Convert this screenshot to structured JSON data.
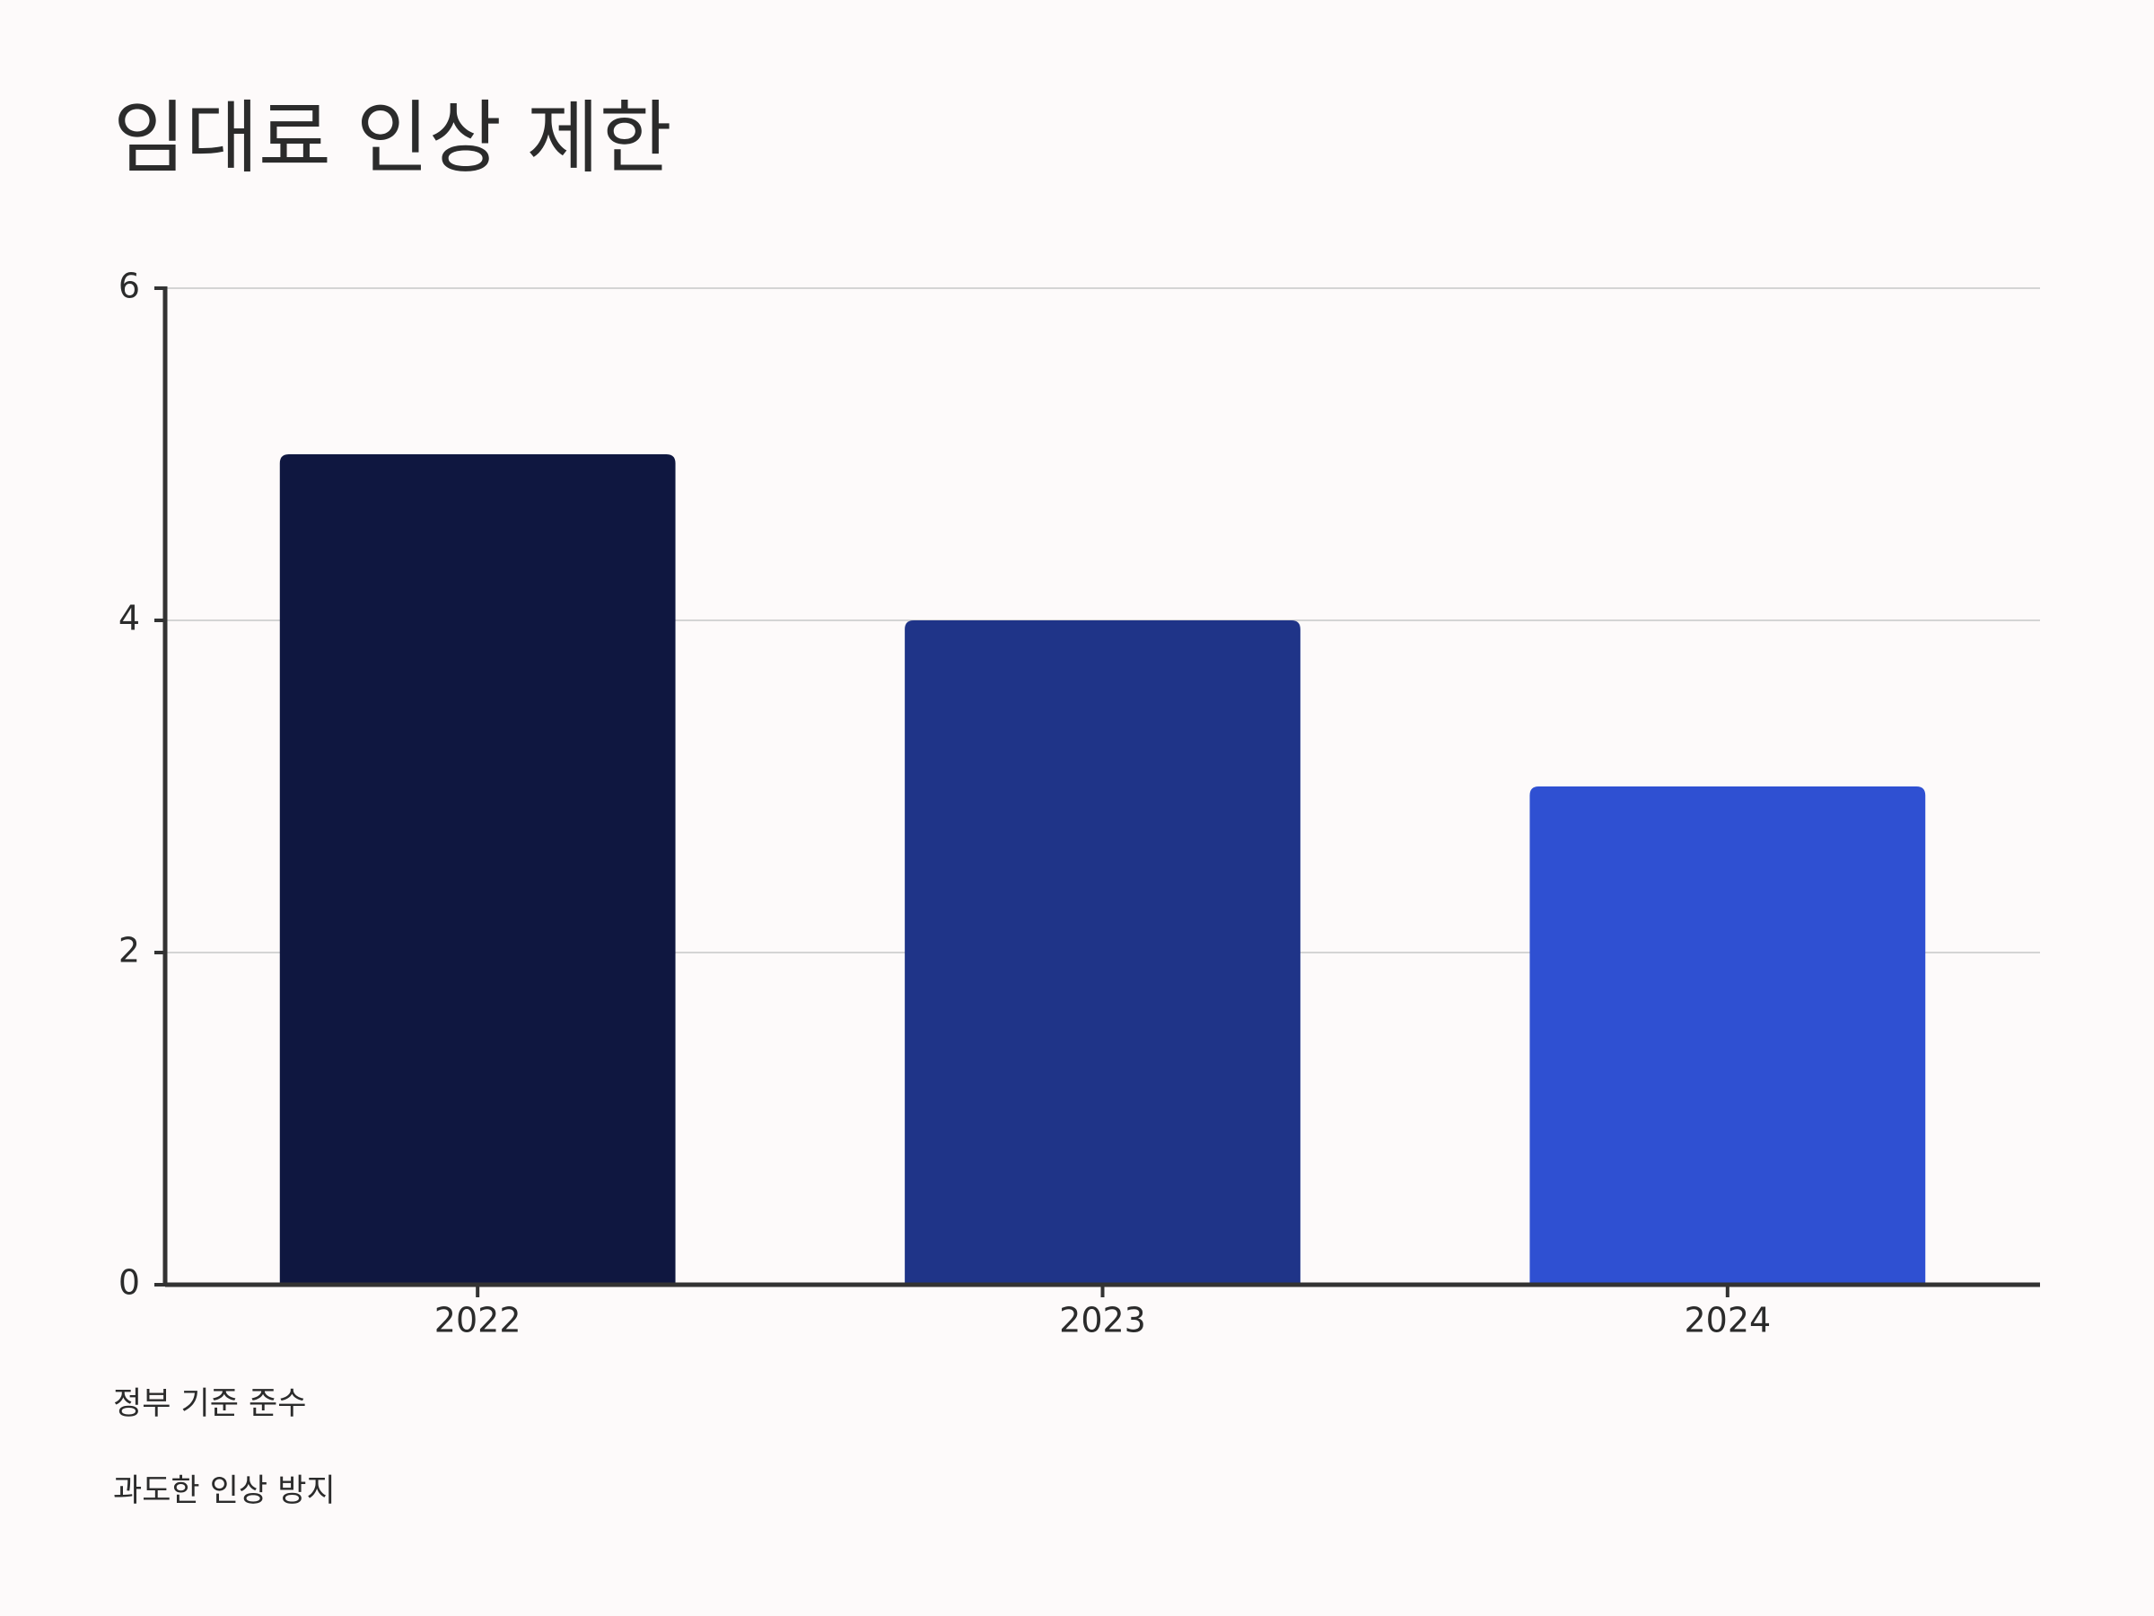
{
  "chart_data": {
    "type": "bar",
    "title": "임대료 인상 제한",
    "categories": [
      "2022",
      "2023",
      "2024"
    ],
    "values": [
      5,
      4,
      3
    ],
    "colors": [
      "#0f1740",
      "#1f3488",
      "#2f50d2"
    ],
    "ylim": [
      0,
      6
    ],
    "yticks": [
      0,
      2,
      4,
      6
    ],
    "grid": true,
    "annotations": [
      "정부 기준 준수",
      "과도한 인상 방지"
    ]
  }
}
